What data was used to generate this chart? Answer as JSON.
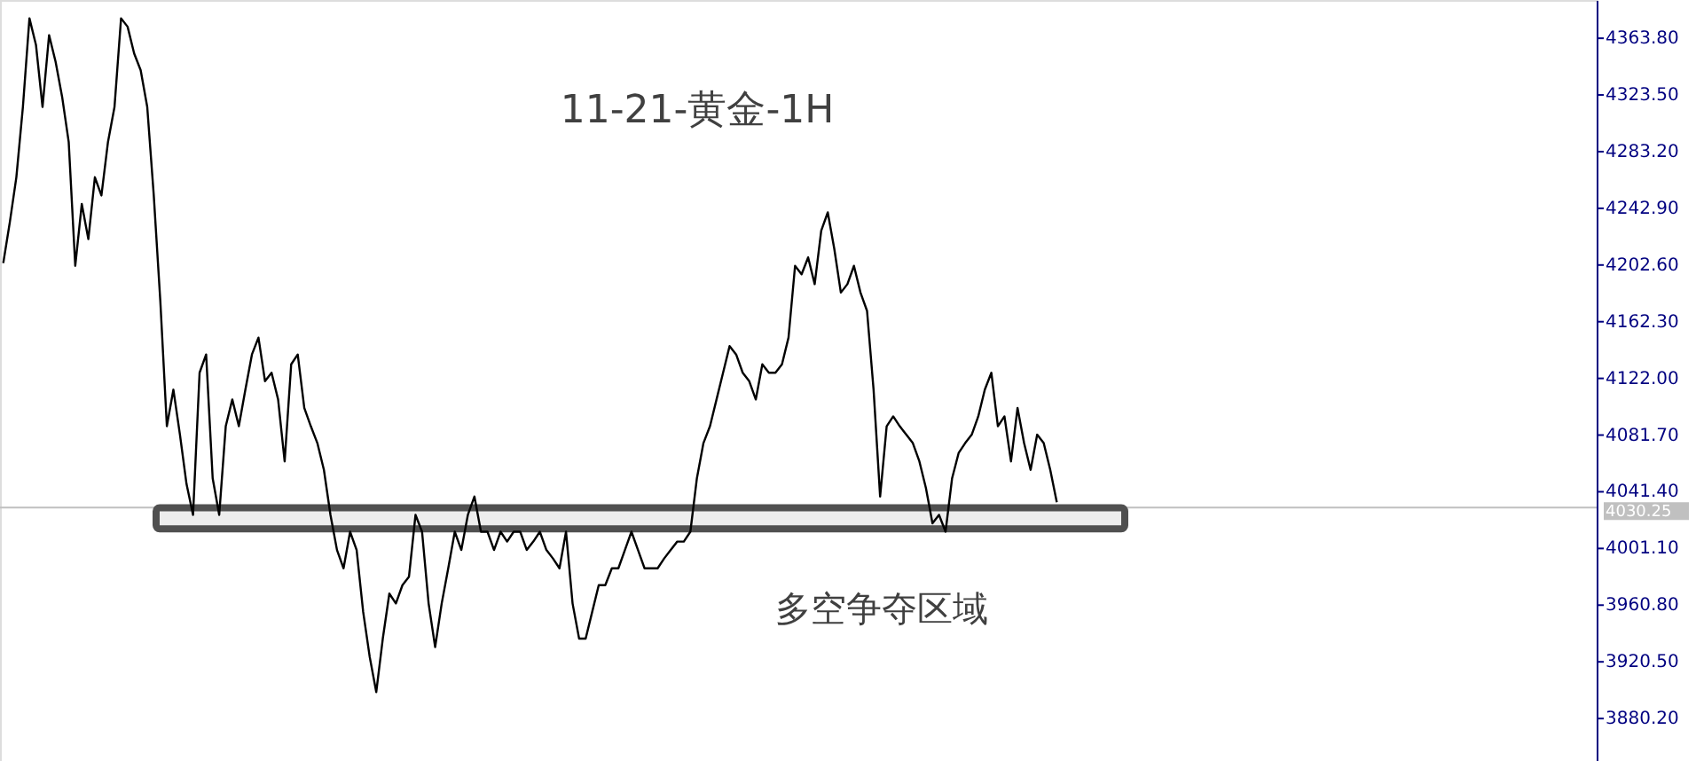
{
  "chart_data": {
    "type": "line",
    "title": "11-21-黄金-1H",
    "categories": [
      null,
      null,
      null,
      null,
      null,
      null,
      null,
      null,
      null,
      null,
      null,
      null,
      null,
      null,
      null,
      null,
      null,
      null,
      null,
      null,
      null,
      null,
      null,
      null,
      null,
      null,
      null,
      null,
      null,
      null,
      null,
      null,
      null,
      null,
      null,
      null,
      null,
      null,
      null,
      null,
      null,
      null,
      null,
      null,
      null,
      null,
      null,
      null,
      null,
      null,
      null,
      null,
      null,
      null,
      null,
      null,
      null,
      null,
      null,
      null,
      null,
      null,
      null,
      null,
      null,
      null,
      null,
      null,
      null,
      null,
      null,
      null,
      null,
      null,
      null,
      null,
      null,
      null,
      null,
      null,
      null,
      null,
      null,
      null,
      null,
      null,
      null,
      null,
      null,
      null,
      null,
      null,
      null,
      null,
      null,
      null,
      null,
      null,
      null,
      null,
      null,
      null,
      null,
      null,
      null,
      null,
      null,
      null,
      null,
      null,
      null,
      null,
      null,
      null,
      null,
      null,
      null,
      null,
      null,
      null,
      null,
      null,
      null,
      null,
      null,
      null,
      null,
      null,
      null,
      null,
      null,
      null,
      null,
      null,
      null,
      null,
      null,
      null,
      null,
      null,
      null,
      null,
      null,
      null,
      null,
      null,
      null,
      null,
      null,
      null,
      null,
      null,
      null,
      null,
      null,
      null,
      null,
      null,
      null,
      null,
      null,
      null,
      null,
      null,
      null,
      null,
      null,
      null,
      null,
      null,
      null,
      null,
      null,
      null,
      null,
      null,
      null,
      null,
      null,
      null,
      null,
      null,
      null,
      null,
      null,
      null,
      null,
      null,
      null,
      null,
      null,
      null,
      null,
      null,
      null,
      null,
      null,
      null,
      null,
      null,
      null,
      null,
      null,
      null,
      null,
      null,
      null,
      null,
      null,
      null,
      null,
      null,
      null,
      null,
      null,
      null,
      null,
      null,
      null,
      null,
      null,
      null,
      null,
      null,
      null,
      null,
      null,
      null,
      null,
      null,
      null,
      null,
      null,
      null,
      null,
      null,
      null,
      null,
      null,
      null,
      null,
      null,
      null,
      null
    ],
    "series": [
      {
        "color": "#000000",
        "values": [
          4204,
          4233,
          4265,
          4315,
          4378,
          4359,
          4315,
          4366,
          4347,
          4322,
          4290,
          4202,
          4246,
          4221,
          4265,
          4252,
          4290,
          4315,
          4378,
          4372,
          4353,
          4341,
          4315,
          4252,
          4177,
          4088,
          4114,
          4082,
          4047,
          4025,
          4126,
          4139,
          4051,
          4025,
          4088,
          4107,
          4088,
          4114,
          4139,
          4151,
          4120,
          4126,
          4107,
          4063,
          4132,
          4139,
          4101,
          4088,
          4076,
          4057,
          4025,
          4000,
          3987,
          4013,
          4000,
          3956,
          3924,
          3899,
          3937,
          3969,
          3962,
          3975,
          3981,
          4025,
          4013,
          3962,
          3931,
          3962,
          3987,
          4013,
          4000,
          4025,
          4038,
          4013,
          4013,
          4000,
          4013,
          4006,
          4013,
          4013,
          4000,
          4006,
          4013,
          4000,
          3994,
          3987,
          4013,
          3962,
          3937,
          3937,
          3956,
          3975,
          3975,
          3987,
          3987,
          4000,
          4013,
          4000,
          3987,
          3987,
          3987,
          3994,
          4000,
          4006,
          4006,
          4013,
          4051,
          4076,
          4088,
          4107,
          4126,
          4145,
          4139,
          4126,
          4120,
          4107,
          4132,
          4126,
          4126,
          4132,
          4151,
          4202,
          4196,
          4208,
          4189,
          4227,
          4240,
          4214,
          4183,
          4189,
          4202,
          4183,
          4170,
          4114,
          4038,
          4088,
          4095,
          4088,
          4082,
          4076,
          4063,
          4044,
          4019,
          4025,
          4013,
          4051,
          4069,
          4076,
          4082,
          4095,
          4114,
          4126,
          4088,
          4095,
          4063,
          4101,
          4076,
          4057,
          4082,
          4076,
          4057,
          4034,
          null,
          null,
          null,
          null,
          null,
          null,
          null,
          null,
          null,
          null,
          null,
          null,
          null,
          null,
          null,
          null,
          null,
          null,
          null,
          null,
          null,
          null,
          null,
          null,
          null,
          null,
          null,
          null,
          null,
          null,
          null,
          null,
          null,
          null,
          null,
          null,
          null,
          null,
          null,
          null,
          null,
          null,
          null,
          null,
          null,
          null,
          null,
          null,
          null,
          null,
          null,
          null,
          null,
          null,
          null,
          null,
          null,
          null,
          null,
          null,
          null,
          null,
          null,
          null,
          null,
          null,
          null,
          null,
          null,
          null,
          null,
          null,
          null,
          null,
          null,
          null,
          null,
          null,
          null,
          null,
          null,
          null
        ]
      }
    ],
    "ylim": [
      3850,
      4391
    ],
    "yticks": [
      {
        "value": 4363.8,
        "label": "4363.80"
      },
      {
        "value": 4323.5,
        "label": "4323.50"
      },
      {
        "value": 4283.2,
        "label": "4283.20"
      },
      {
        "value": 4242.9,
        "label": "4242.90"
      },
      {
        "value": 4202.6,
        "label": "4202.60"
      },
      {
        "value": 4162.3,
        "label": "4162.30"
      },
      {
        "value": 4122.0,
        "label": "4122.00"
      },
      {
        "value": 4081.7,
        "label": "4081.70"
      },
      {
        "value": 4041.4,
        "label": "4041.40"
      },
      {
        "value": 4001.1,
        "label": "4001.10"
      },
      {
        "value": 3960.8,
        "label": "3960.80"
      },
      {
        "value": 3920.5,
        "label": "3920.50"
      },
      {
        "value": 3880.2,
        "label": "3880.20"
      }
    ],
    "ref_lines": [
      {
        "axis": "y",
        "value": 4030.25,
        "label": "4030.25",
        "color": "#c0c0c0"
      }
    ],
    "bands": [
      {
        "axis": "y",
        "from": 4015,
        "to": 4030,
        "color": "#505050"
      }
    ],
    "annotations": [
      "多空争夺区域"
    ],
    "grid": false,
    "tick_labels": "y"
  }
}
